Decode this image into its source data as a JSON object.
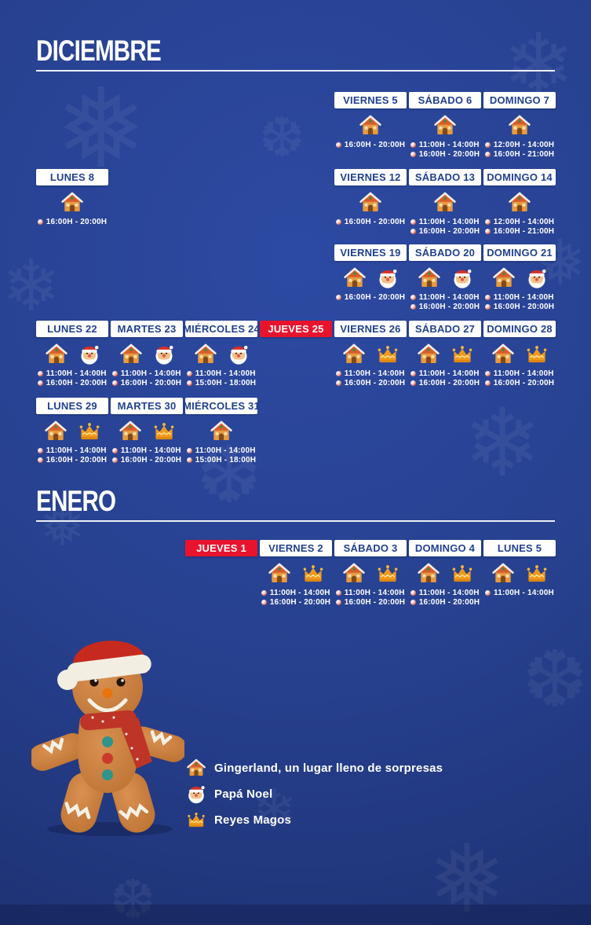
{
  "colors": {
    "background": "#27418F",
    "header_bg": "#FFFFFF",
    "header_text": "#21418F",
    "closed_bg": "#E8142E",
    "title_text": "#FFFFFF",
    "time_text": "#FFFFFF"
  },
  "icons": {
    "house": "gingerbread-house-icon",
    "santa": "papa-noel-icon",
    "crown": "reyes-magos-icon"
  },
  "december": {
    "title": "DICIEMBRE",
    "rows": [
      [
        {
          "col": 5,
          "label": "VIERNES 5",
          "icons": [
            "house"
          ],
          "times": [
            "16:00H - 20:00H"
          ]
        },
        {
          "col": 6,
          "label": "SÁBADO 6",
          "icons": [
            "house"
          ],
          "times": [
            "11:00H - 14:00H",
            "16:00H - 20:00H"
          ]
        },
        {
          "col": 7,
          "label": "DOMINGO 7",
          "icons": [
            "house"
          ],
          "times": [
            "12:00H - 14:00H",
            "16:00H - 21:00H"
          ]
        }
      ],
      [
        {
          "col": 1,
          "label": "LUNES 8",
          "icons": [
            "house"
          ],
          "times": [
            "16:00H - 20:00H"
          ]
        },
        {
          "col": 5,
          "label": "VIERNES 12",
          "icons": [
            "house"
          ],
          "times": [
            "16:00H - 20:00H"
          ]
        },
        {
          "col": 6,
          "label": "SÁBADO 13",
          "icons": [
            "house"
          ],
          "times": [
            "11:00H - 14:00H",
            "16:00H - 20:00H"
          ]
        },
        {
          "col": 7,
          "label": "DOMINGO 14",
          "icons": [
            "house"
          ],
          "times": [
            "12:00H - 14:00H",
            "16:00H - 21:00H"
          ]
        }
      ],
      [
        {
          "col": 5,
          "label": "VIERNES 19",
          "icons": [
            "house",
            "santa"
          ],
          "times": [
            "16:00H - 20:00H"
          ]
        },
        {
          "col": 6,
          "label": "SÁBADO 20",
          "icons": [
            "house",
            "santa"
          ],
          "times": [
            "11:00H - 14:00H",
            "16:00H - 20:00H"
          ]
        },
        {
          "col": 7,
          "label": "DOMINGO 21",
          "icons": [
            "house",
            "santa"
          ],
          "times": [
            "11:00H - 14:00H",
            "16:00H - 20:00H"
          ]
        }
      ],
      [
        {
          "col": 1,
          "label": "LUNES 22",
          "icons": [
            "house",
            "santa"
          ],
          "times": [
            "11:00H - 14:00H",
            "16:00H - 20:00H"
          ]
        },
        {
          "col": 2,
          "label": "MARTES 23",
          "icons": [
            "house",
            "santa"
          ],
          "times": [
            "11:00H - 14:00H",
            "16:00H - 20:00H"
          ]
        },
        {
          "col": 3,
          "label": "MIÉRCOLES 24",
          "icons": [
            "house",
            "santa"
          ],
          "times": [
            "11:00H - 14:00H",
            "15:00H - 18:00H"
          ]
        },
        {
          "col": 4,
          "label": "JUEVES 25",
          "closed": true
        },
        {
          "col": 5,
          "label": "VIERNES 26",
          "icons": [
            "house",
            "crown"
          ],
          "times": [
            "11:00H - 14:00H",
            "16:00H - 20:00H"
          ]
        },
        {
          "col": 6,
          "label": "SÁBADO 27",
          "icons": [
            "house",
            "crown"
          ],
          "times": [
            "11:00H - 14:00H",
            "16:00H - 20:00H"
          ]
        },
        {
          "col": 7,
          "label": "DOMINGO 28",
          "icons": [
            "house",
            "crown"
          ],
          "times": [
            "11:00H - 14:00H",
            "16:00H - 20:00H"
          ]
        }
      ],
      [
        {
          "col": 1,
          "label": "LUNES 29",
          "icons": [
            "house",
            "crown"
          ],
          "times": [
            "11:00H - 14:00H",
            "16:00H - 20:00H"
          ]
        },
        {
          "col": 2,
          "label": "MARTES 30",
          "icons": [
            "house",
            "crown"
          ],
          "times": [
            "11:00H - 14:00H",
            "16:00H - 20:00H"
          ]
        },
        {
          "col": 3,
          "label": "MIÉRCOLES 31",
          "icons": [
            "house"
          ],
          "times": [
            "11:00H - 14:00H",
            "15:00H - 18:00H"
          ]
        }
      ]
    ]
  },
  "january": {
    "title": "ENERO",
    "rows": [
      [
        {
          "col": 3,
          "label": "JUEVES 1",
          "closed": true
        },
        {
          "col": 4,
          "label": "VIERNES 2",
          "icons": [
            "house",
            "crown"
          ],
          "times": [
            "11:00H - 14:00H",
            "16:00H - 20:00H"
          ]
        },
        {
          "col": 5,
          "label": "SÁBADO 3",
          "icons": [
            "house",
            "crown"
          ],
          "times": [
            "11:00H - 14:00H",
            "16:00H - 20:00H"
          ]
        },
        {
          "col": 6,
          "label": "DOMINGO 4",
          "icons": [
            "house",
            "crown"
          ],
          "times": [
            "11:00H - 14:00H",
            "16:00H - 20:00H"
          ]
        },
        {
          "col": 7,
          "label": "LUNES 5",
          "icons": [
            "house",
            "crown"
          ],
          "times": [
            "11:00H - 14:00H"
          ]
        }
      ]
    ]
  },
  "legend": {
    "items": [
      {
        "icon": "house",
        "label": "Gingerland, un lugar lleno de sorpresas"
      },
      {
        "icon": "santa",
        "label": "Papá Noel"
      },
      {
        "icon": "crown",
        "label": "Reyes Magos"
      }
    ]
  },
  "decor": {
    "glyphs": [
      "❄",
      "❅",
      "❆"
    ]
  }
}
